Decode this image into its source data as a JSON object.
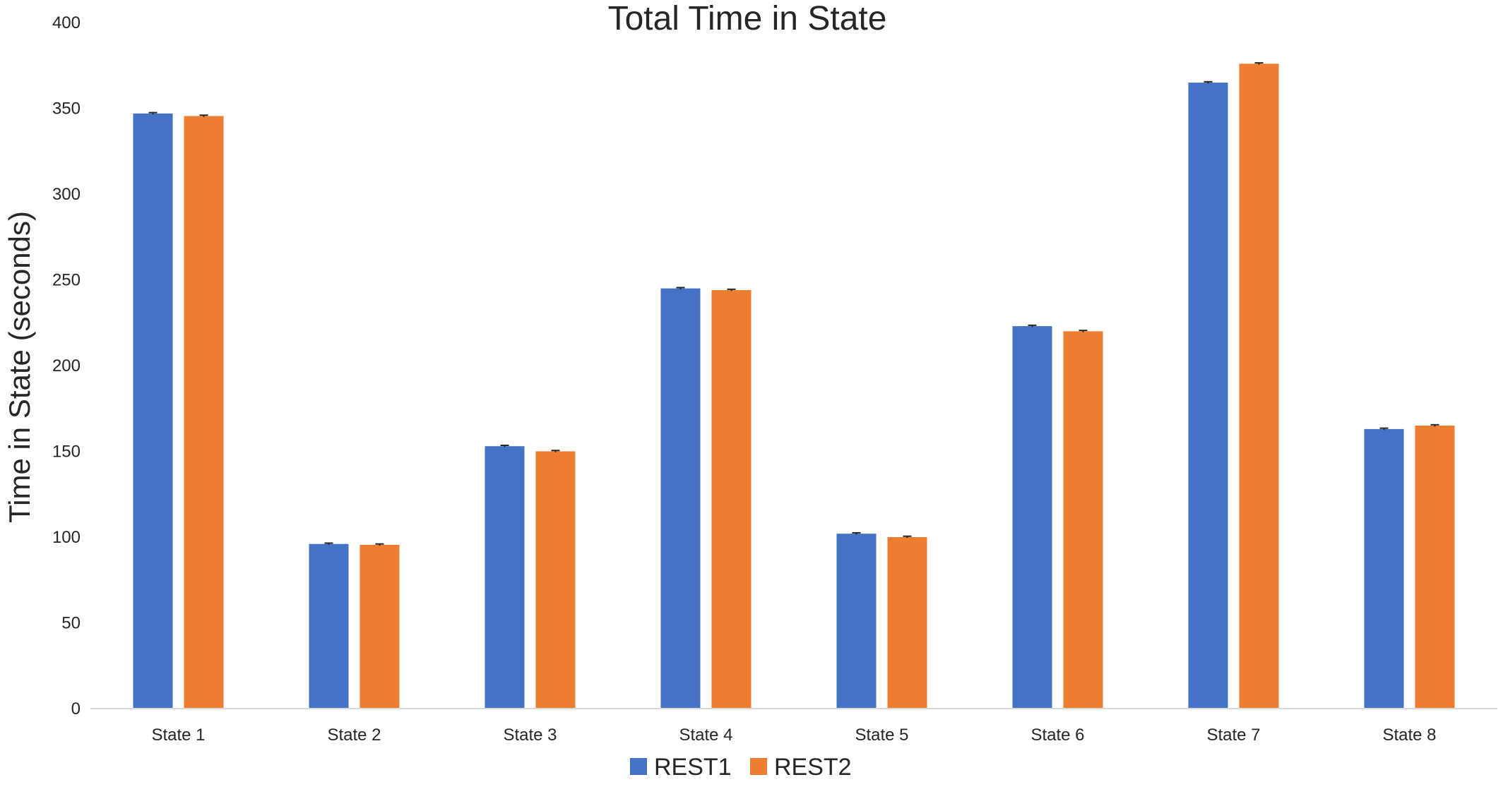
{
  "chart_data": {
    "type": "bar",
    "title": "Total Time in State",
    "xlabel": "",
    "ylabel": "Time in State (seconds)",
    "ylim": [
      0,
      400
    ],
    "yticks": [
      0,
      50,
      100,
      150,
      200,
      250,
      300,
      350,
      400
    ],
    "grid": false,
    "legend_position": "bottom",
    "categories": [
      "State 1",
      "State 2",
      "State 3",
      "State 4",
      "State 5",
      "State 6",
      "State 7",
      "State 8"
    ],
    "series": [
      {
        "name": "REST1",
        "color": "#4472c4",
        "values": [
          347,
          96,
          153,
          245,
          102,
          223,
          365,
          163
        ],
        "errors": [
          0.5,
          0.5,
          0.5,
          0.5,
          0.5,
          0.5,
          0.5,
          0.5
        ]
      },
      {
        "name": "REST2",
        "color": "#ed7d31",
        "values": [
          345.5,
          95.5,
          150,
          244,
          100,
          220,
          376,
          165
        ],
        "errors": [
          0.5,
          0.5,
          0.5,
          0.5,
          0.5,
          0.5,
          0.5,
          0.5
        ]
      }
    ]
  }
}
